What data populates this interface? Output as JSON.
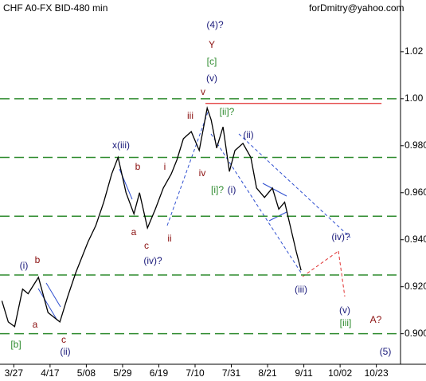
{
  "chart_data": {
    "type": "line",
    "title": "CHF A0-FX BID-480 min",
    "credit": "forDmitry@yahoo.com",
    "xlim": [
      -8,
      224
    ],
    "ylim": [
      0.887,
      1.042
    ],
    "xticks": [
      {
        "value": 0,
        "label": "3/27"
      },
      {
        "value": 21,
        "label": "4/17"
      },
      {
        "value": 42,
        "label": "5/08"
      },
      {
        "value": 63,
        "label": "5/29"
      },
      {
        "value": 84,
        "label": "6/19"
      },
      {
        "value": 105,
        "label": "7/10"
      },
      {
        "value": 126,
        "label": "7/31"
      },
      {
        "value": 147,
        "label": "8/21"
      },
      {
        "value": 168,
        "label": "9/11"
      },
      {
        "value": 189,
        "label": "10/02"
      },
      {
        "value": 210,
        "label": "10/23"
      }
    ],
    "yticks": [
      1.02,
      {
        "value": 1.0,
        "label": "1.00"
      },
      {
        "value": 0.98,
        "label": "0.980"
      },
      {
        "value": 0.96,
        "label": "0.960"
      },
      {
        "value": 0.94,
        "label": "0.940"
      },
      {
        "value": 0.92,
        "label": "0.920"
      },
      {
        "value": 0.9,
        "label": "0.900"
      }
    ],
    "levels": [
      1.0,
      0.975,
      0.95,
      0.925,
      0.9
    ],
    "level_color": "#2e8b2e",
    "resistance": {
      "value": 0.998,
      "x": [
        111,
        213
      ],
      "color": "#e03030"
    },
    "series": [
      {
        "name": "CHF",
        "color": "#000000",
        "x": [
          -6.9,
          -3.2,
          0.5,
          5.1,
          8.3,
          14.3,
          19.8,
          26.7,
          31.3,
          35.9,
          42.9,
          47.5,
          52.1,
          56.7,
          60.4,
          65.0,
          69.6,
          72.8,
          77.4,
          82.0,
          86.6,
          91.2,
          94.5,
          98.2,
          102.8,
          107.4,
          112.0,
          114.3,
          117.5,
          121.2,
          124.9,
          128.1,
          132.7,
          137.3,
          140.6,
          145.2,
          149.8,
          153.5,
          156.9,
          160.4,
          163.6,
          166.4
        ],
        "values": [
          0.914,
          0.905,
          0.903,
          0.919,
          0.917,
          0.924,
          0.909,
          0.905,
          0.916,
          0.926,
          0.939,
          0.946,
          0.956,
          0.968,
          0.975,
          0.96,
          0.951,
          0.96,
          0.945,
          0.953,
          0.962,
          0.968,
          0.974,
          0.983,
          0.986,
          0.978,
          0.996,
          0.991,
          0.979,
          0.988,
          0.969,
          0.978,
          0.981,
          0.975,
          0.962,
          0.958,
          0.962,
          0.953,
          0.956,
          0.945,
          0.935,
          0.927
        ]
      }
    ],
    "annotations": [
      "(4)?",
      "Y",
      "[c]",
      "(v)",
      "v",
      "iii",
      "[ii]?",
      "(ii)",
      "x(iii)",
      "b",
      "i",
      "iv",
      "[i]?",
      "(i)",
      "a",
      "ii",
      "c",
      "(iv)?",
      "(i)",
      "b",
      "a",
      "c",
      "(ii)",
      "[b]",
      "(iii)",
      "(iv)?",
      "(v)",
      "[iii]",
      "A?",
      "(5)"
    ]
  }
}
